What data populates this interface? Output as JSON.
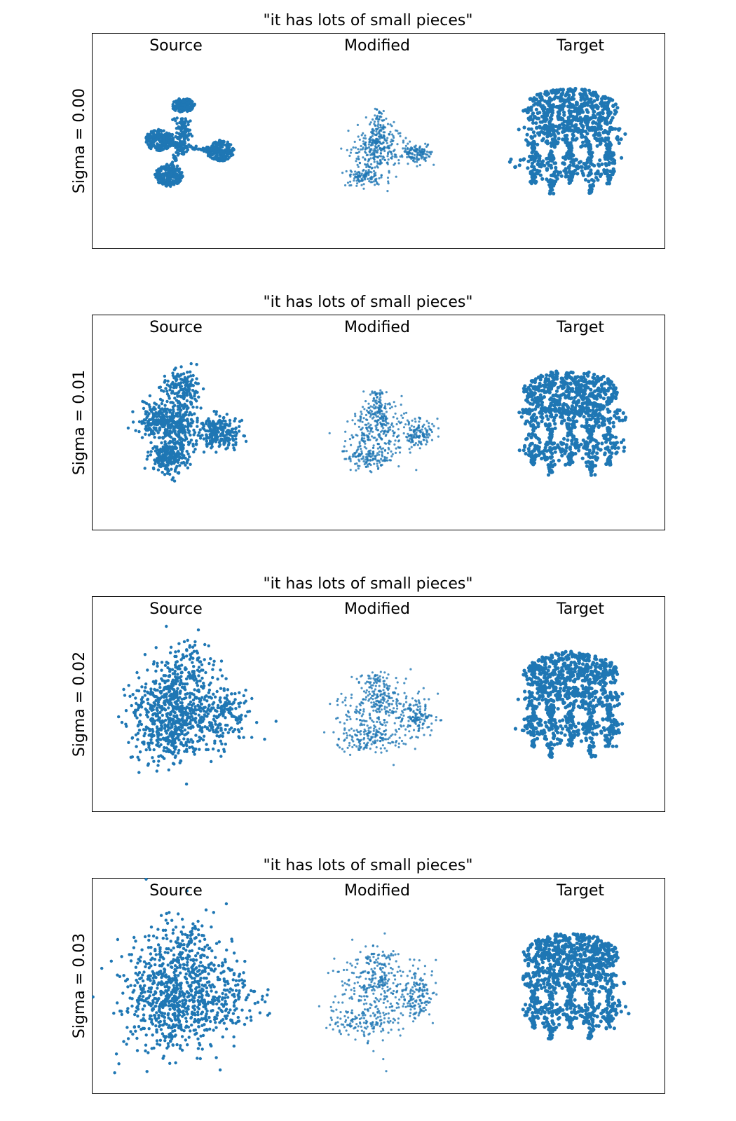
{
  "figure": {
    "panels": [
      {
        "title": "\"it has lots of small pieces\"",
        "row_label": "Sigma = 0.00",
        "columns": [
          "Source",
          "Modified",
          "Target"
        ]
      },
      {
        "title": "\"it has lots of small pieces\"",
        "row_label": "Sigma = 0.01",
        "columns": [
          "Source",
          "Modified",
          "Target"
        ]
      },
      {
        "title": "\"it has lots of small pieces\"",
        "row_label": "Sigma = 0.02",
        "columns": [
          "Source",
          "Modified",
          "Target"
        ]
      },
      {
        "title": "\"it has lots of small pieces\"",
        "row_label": "Sigma = 0.03",
        "columns": [
          "Source",
          "Modified",
          "Target"
        ]
      }
    ]
  },
  "chart_data": [
    {
      "type": "scatter",
      "title": "\"it has lots of small pieces\"",
      "row_label": "Sigma = 0.00",
      "sigma": 0.0,
      "columns": [
        "Source",
        "Modified",
        "Target"
      ],
      "point_color": "#1f77b4",
      "grid": false,
      "axes_ticks": false
    },
    {
      "type": "scatter",
      "title": "\"it has lots of small pieces\"",
      "row_label": "Sigma = 0.01",
      "sigma": 0.01,
      "columns": [
        "Source",
        "Modified",
        "Target"
      ],
      "point_color": "#1f77b4",
      "grid": false,
      "axes_ticks": false
    },
    {
      "type": "scatter",
      "title": "\"it has lots of small pieces\"",
      "row_label": "Sigma = 0.02",
      "sigma": 0.02,
      "columns": [
        "Source",
        "Modified",
        "Target"
      ],
      "point_color": "#1f77b4",
      "grid": false,
      "axes_ticks": false
    },
    {
      "type": "scatter",
      "title": "\"it has lots of small pieces\"",
      "row_label": "Sigma = 0.03",
      "sigma": 0.03,
      "columns": [
        "Source",
        "Modified",
        "Target"
      ],
      "point_color": "#1f77b4",
      "grid": false,
      "axes_ticks": false
    }
  ]
}
